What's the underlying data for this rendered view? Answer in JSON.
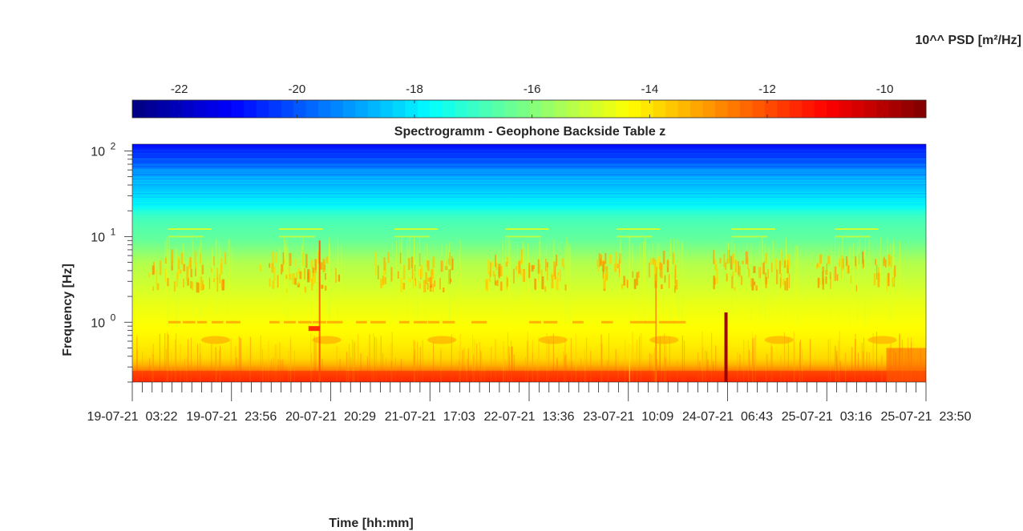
{
  "chart_data": {
    "type": "heatmap",
    "title": "Spectrogramm - Geophone Backside Table z",
    "xlabel": "Time [hh:mm]",
    "ylabel": "Frequency [Hz]",
    "colorbar_label": "10^^ PSD [m²/Hz]",
    "colormap": "jet",
    "colorbar_range": [
      -22.8,
      -9.3
    ],
    "colorbar_ticks": [
      "-22",
      "-20",
      "-18",
      "-16",
      "-14",
      "-12",
      "-10"
    ],
    "colorbar_tick_values": [
      -22,
      -20,
      -18,
      -16,
      -14,
      -12,
      -10
    ],
    "y_scale": "log",
    "y_range_hz": [
      0.2,
      120
    ],
    "y_tick_labels": [
      {
        "base": "10",
        "exp": "0",
        "value": 1
      },
      {
        "base": "10",
        "exp": "1",
        "value": 10
      },
      {
        "base": "10",
        "exp": "2",
        "value": 100
      }
    ],
    "x_tick_labels": [
      "19-07-21  03:22",
      "19-07-21  23:56",
      "20-07-21  20:29",
      "21-07-21  17:03",
      "22-07-21  13:36",
      "23-07-21  10:09",
      "24-07-21  06:43",
      "25-07-21  03:16",
      "25-07-21  23:50"
    ],
    "features": [
      {
        "band_hz": [
          0.2,
          0.3
        ],
        "log_psd": -11.5,
        "note": "persistent low-frequency energy"
      },
      {
        "band_hz": [
          2.5,
          4.5
        ],
        "log_psd": -13.5,
        "note": "daily daytime bursts"
      },
      {
        "band_hz": [
          0.95,
          1.05
        ],
        "log_psd": -13.5,
        "note": "intermittent 1 Hz line"
      },
      {
        "band_hz": [
          20,
          120
        ],
        "log_psd": -19.5,
        "note": "high-frequency floor"
      },
      {
        "time_fraction": 0.746,
        "log_psd": -10,
        "note": "broadband transient near 24-07-21"
      }
    ]
  }
}
